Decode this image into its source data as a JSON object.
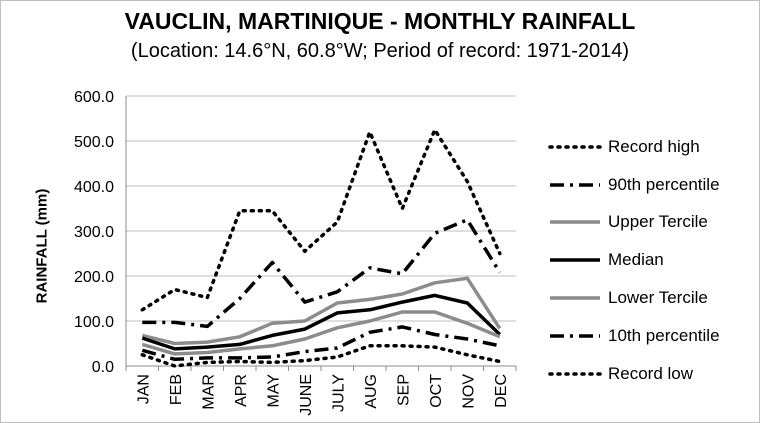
{
  "title": "VAUCLIN, MARTINIQUE - MONTHLY RAINFALL",
  "subtitle": "(Location: 14.6°N, 60.8°W; Period of record: 1971-2014)",
  "chart_data": {
    "type": "line",
    "ylabel": "RAINFALL (mm)",
    "xlabel": "",
    "ylim": [
      0,
      600
    ],
    "ytick_labels": [
      "0.0",
      "100.0",
      "200.0",
      "300.0",
      "400.0",
      "500.0",
      "600.0"
    ],
    "categories": [
      "JAN",
      "FEB",
      "MAR",
      "APR",
      "MAY",
      "JUNE",
      "JULY",
      "AUG",
      "SEP",
      "OCT",
      "NOV",
      "DEC"
    ],
    "grid": true,
    "legend_position": "right",
    "series": [
      {
        "name": "Record high",
        "style": "dotted",
        "color": "#000000",
        "values": [
          125,
          170,
          152,
          345,
          345,
          255,
          320,
          520,
          350,
          525,
          410,
          250
        ]
      },
      {
        "name": "90th percentile",
        "style": "dashdot",
        "color": "#000000",
        "values": [
          97,
          97,
          88,
          150,
          230,
          142,
          165,
          218,
          205,
          295,
          325,
          208
        ]
      },
      {
        "name": "Upper Tercile",
        "style": "solid",
        "color": "#8c8c8c",
        "values": [
          68,
          50,
          53,
          65,
          95,
          100,
          140,
          148,
          160,
          185,
          195,
          83
        ]
      },
      {
        "name": "Median",
        "style": "solid",
        "color": "#000000",
        "values": [
          62,
          38,
          42,
          48,
          68,
          82,
          118,
          125,
          142,
          157,
          140,
          70
        ]
      },
      {
        "name": "Lower Tercile",
        "style": "solid",
        "color": "#8c8c8c",
        "values": [
          48,
          27,
          30,
          38,
          45,
          60,
          85,
          100,
          120,
          120,
          95,
          65
        ]
      },
      {
        "name": "10th percentile",
        "style": "dashdot",
        "color": "#000000",
        "values": [
          35,
          15,
          18,
          18,
          20,
          32,
          40,
          75,
          87,
          70,
          60,
          45
        ]
      },
      {
        "name": "Record low",
        "style": "dotted",
        "color": "#000000",
        "values": [
          25,
          0,
          8,
          10,
          8,
          12,
          20,
          45,
          45,
          42,
          25,
          10
        ]
      }
    ]
  }
}
